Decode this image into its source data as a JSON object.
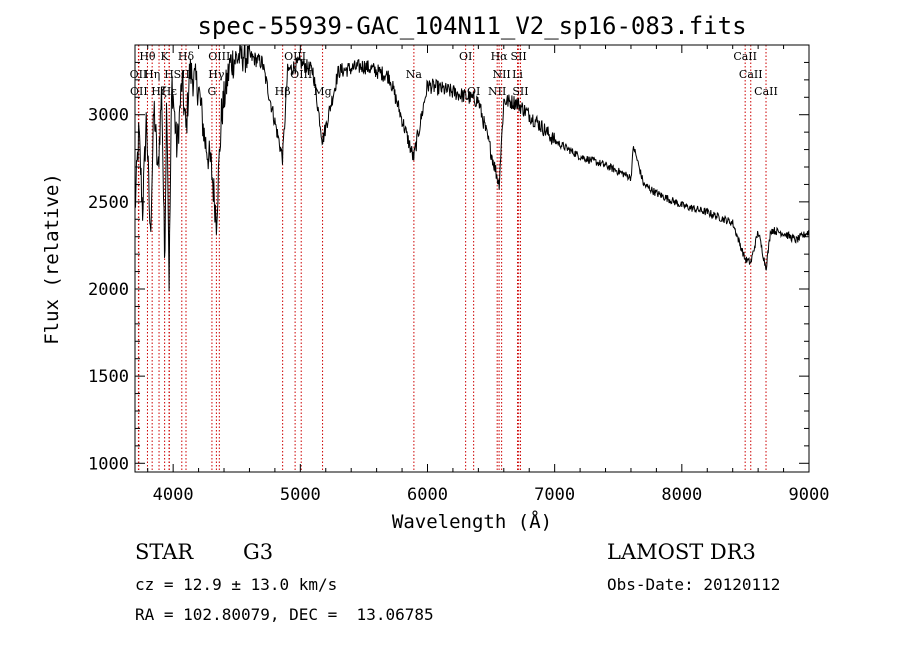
{
  "chart_data": {
    "type": "line",
    "title": "spec-55939-GAC_104N11_V2_sp16-083.fits",
    "xlabel": "Wavelength (Å)",
    "ylabel": "Flux (relative)",
    "xlim": [
      3700,
      9000
    ],
    "ylim": [
      950,
      3400
    ],
    "xticks": [
      4000,
      5000,
      6000,
      7000,
      8000,
      9000
    ],
    "yticks": [
      1000,
      1500,
      2000,
      2500,
      3000
    ],
    "line_color": "#000000",
    "marker_color": "#cc0000",
    "spectrum_anchors": {
      "x": [
        3700,
        3730,
        3760,
        3790,
        3820,
        3850,
        3880,
        3910,
        3933,
        3950,
        3968,
        3990,
        4030,
        4070,
        4101,
        4130,
        4200,
        4250,
        4300,
        4340,
        4380,
        4450,
        4550,
        4700,
        4861,
        4900,
        5000,
        5100,
        5175,
        5300,
        5500,
        5700,
        5890,
        6000,
        6200,
        6400,
        6563,
        6600,
        6700,
        6800,
        6900,
        7000,
        7200,
        7400,
        7600,
        7620,
        7700,
        7800,
        8000,
        8200,
        8400,
        8498,
        8542,
        8600,
        8662,
        8700,
        8800,
        8900,
        9000
      ],
      "y": [
        2450,
        2900,
        2450,
        3000,
        2300,
        3050,
        2650,
        3150,
        2150,
        3150,
        2050,
        3200,
        2800,
        3200,
        2900,
        3250,
        3150,
        2850,
        2700,
        2400,
        3000,
        3300,
        3350,
        3300,
        2750,
        3250,
        3300,
        3250,
        2850,
        3250,
        3280,
        3220,
        2750,
        3170,
        3130,
        3080,
        2600,
        3080,
        3070,
        3000,
        2930,
        2850,
        2760,
        2710,
        2640,
        2820,
        2600,
        2550,
        2480,
        2440,
        2380,
        2170,
        2150,
        2330,
        2120,
        2340,
        2320,
        2280,
        2330
      ]
    },
    "absorption_lines": [
      {
        "label": "Hθ",
        "x": 3798,
        "row": 0
      },
      {
        "label": "OII",
        "x": 3727,
        "row": 1
      },
      {
        "label": "Hη",
        "x": 3835,
        "row": 1
      },
      {
        "label": "OII",
        "x": 3730,
        "row": 2
      },
      {
        "label": "Hζ",
        "x": 3889,
        "row": 2
      },
      {
        "label": "K",
        "x": 3933,
        "row": 0
      },
      {
        "label": "H",
        "x": 3968,
        "row": 1
      },
      {
        "label": "Hε",
        "x": 3970,
        "row": 2
      },
      {
        "label": "SII",
        "x": 4068,
        "row": 1
      },
      {
        "label": "Hδ",
        "x": 4101,
        "row": 0
      },
      {
        "label": "OIII",
        "x": 4363,
        "row": 0
      },
      {
        "label": "Hγ",
        "x": 4340,
        "row": 1
      },
      {
        "label": "G",
        "x": 4305,
        "row": 2
      },
      {
        "label": "OIII",
        "x": 4959,
        "row": 0
      },
      {
        "label": "OIII",
        "x": 5007,
        "row": 1
      },
      {
        "label": "Hβ",
        "x": 4861,
        "row": 2
      },
      {
        "label": "Mg",
        "x": 5175,
        "row": 2
      },
      {
        "label": "Na",
        "x": 5893,
        "row": 1
      },
      {
        "label": "OI",
        "x": 6300,
        "row": 0
      },
      {
        "label": "OI",
        "x": 6363,
        "row": 2
      },
      {
        "label": "Hα",
        "x": 6563,
        "row": 0
      },
      {
        "label": "SII",
        "x": 6717,
        "row": 0
      },
      {
        "label": "NII",
        "x": 6583,
        "row": 1
      },
      {
        "label": "Li",
        "x": 6708,
        "row": 1
      },
      {
        "label": "NII",
        "x": 6548,
        "row": 2
      },
      {
        "label": "SII",
        "x": 6731,
        "row": 2
      },
      {
        "label": "CaII",
        "x": 8498,
        "row": 0
      },
      {
        "label": "CaII",
        "x": 8542,
        "row": 1
      },
      {
        "label": "CaII",
        "x": 8662,
        "row": 2
      }
    ]
  },
  "info": {
    "object_type": "STAR",
    "subclass": "G3",
    "survey": "LAMOST DR3",
    "cz": "cz = 12.9 ± 13.0 km/s",
    "obs_date": "Obs-Date: 20120112",
    "coords": "RA = 102.80079, DEC =  13.06785"
  }
}
